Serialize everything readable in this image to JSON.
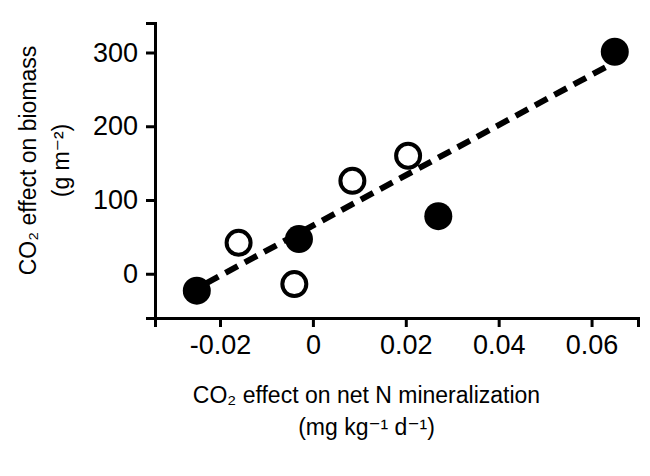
{
  "chart_data": {
    "type": "scatter",
    "xlabel": [
      "CO₂ effect on net N mineralization",
      "(mg kg⁻¹ d⁻¹)"
    ],
    "ylabel": [
      "CO₂ effect on biomass",
      "(g m⁻²)"
    ],
    "xlim": [
      -0.034,
      0.07
    ],
    "ylim": [
      -60,
      340
    ],
    "xticks": [
      -0.02,
      0,
      0.02,
      0.04,
      0.06
    ],
    "yticks": [
      0,
      100,
      200,
      300
    ],
    "grid": false,
    "series": [
      {
        "type": "scatter",
        "marker": "circle",
        "color": "#000000",
        "x": [
          -0.025,
          -0.003,
          0.027,
          0.065
        ],
        "values": [
          -23,
          47,
          78,
          301
        ]
      },
      {
        "type": "scatter",
        "marker": "open_circle",
        "color": "#000000",
        "x": [
          -0.016,
          -0.004,
          0.0085,
          0.0205
        ],
        "values": [
          42,
          -14,
          126,
          160
        ]
      },
      {
        "type": "line",
        "line_style": "dashed",
        "color": "#000000",
        "x": [
          -0.023,
          0.063
        ],
        "values": [
          -13,
          280
        ]
      }
    ]
  }
}
